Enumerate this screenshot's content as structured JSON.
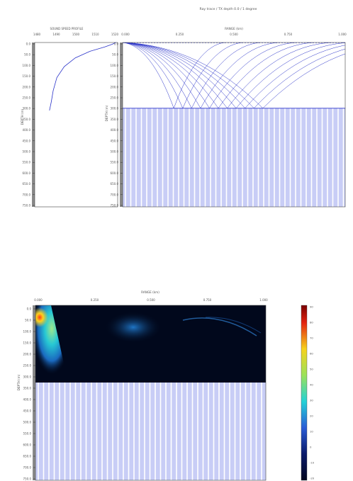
{
  "figure": {
    "title": "Ray trace / TX depth 0.0 / 1 degree",
    "colors": {
      "ray": "#2a33c9",
      "bottom_fill": "#c8cdf6",
      "bottom_stripe": "#ffffff",
      "axis": "#333333",
      "tick_bar": "#8a8a8a"
    }
  },
  "chart_data": [
    {
      "id": "sound-speed",
      "type": "line",
      "title": "SOUND SPEED PROFILE",
      "xlabel": "",
      "ylabel": "DEPTH (m)",
      "x_tick_labels": [
        "1480",
        "1490",
        "1500",
        "1510",
        "1520"
      ],
      "y_tick_labels": [
        "0.0",
        "50.0",
        "100.0",
        "150.0",
        "200.0",
        "250.0",
        "300.0",
        "350.0",
        "400.0",
        "450.0",
        "500.0",
        "550.0",
        "600.0",
        "650.0",
        "700.0",
        "750.0"
      ],
      "xlim": [
        1480,
        1525
      ],
      "ylim": [
        0,
        750
      ],
      "series": [
        {
          "x": [
            1524,
            1522,
            1518,
            1510,
            1502,
            1496,
            1492,
            1490,
            1489,
            1488
          ],
          "y": [
            0,
            8,
            20,
            40,
            70,
            110,
            160,
            220,
            270,
            310
          ]
        }
      ]
    },
    {
      "id": "ray-trace",
      "type": "line",
      "title": "",
      "xlabel": "RANGE (km)",
      "ylabel": "DEPTH (m)",
      "x_tick_labels": [
        "0.000",
        "0.250",
        "0.500",
        "0.750",
        "1.000"
      ],
      "y_tick_labels": [
        "0.0",
        "50.0",
        "100.0",
        "150.0",
        "200.0",
        "250.0",
        "300.0",
        "350.0",
        "400.0",
        "450.0",
        "500.0",
        "550.0",
        "600.0",
        "650.0",
        "700.0",
        "750.0"
      ],
      "xlim": [
        0,
        1
      ],
      "ylim": [
        0,
        750
      ],
      "bottom_depth": 300,
      "rays": [
        {
          "bottom_range": 0.23
        },
        {
          "bottom_range": 0.27
        },
        {
          "bottom_range": 0.31
        },
        {
          "bottom_range": 0.35
        },
        {
          "bottom_range": 0.39
        },
        {
          "bottom_range": 0.43
        },
        {
          "bottom_range": 0.47
        },
        {
          "bottom_range": 0.51
        },
        {
          "bottom_range": 0.55
        },
        {
          "bottom_range": 0.59
        },
        {
          "bottom_range": 0.63
        }
      ]
    },
    {
      "id": "transmission-loss",
      "type": "heatmap",
      "title": "",
      "xlabel": "RANGE (km)",
      "ylabel": "DEPTH (m)",
      "x_tick_labels": [
        "0.000",
        "0.250",
        "0.500",
        "0.750",
        "1.000"
      ],
      "y_tick_labels": [
        "0.0",
        "50.0",
        "100.0",
        "150.0",
        "200.0",
        "250.0",
        "300.0",
        "350.0",
        "400.0",
        "450.0",
        "500.0",
        "550.0",
        "600.0",
        "650.0",
        "700.0",
        "750.0"
      ],
      "xlim": [
        0,
        1
      ],
      "ylim": [
        0,
        750
      ],
      "bottom_depth": 300,
      "colorbar": {
        "tick_labels": [
          "90",
          "80",
          "70",
          "60",
          "50",
          "40",
          "30",
          "20",
          "10",
          "0",
          "-10",
          "-20"
        ]
      }
    }
  ]
}
